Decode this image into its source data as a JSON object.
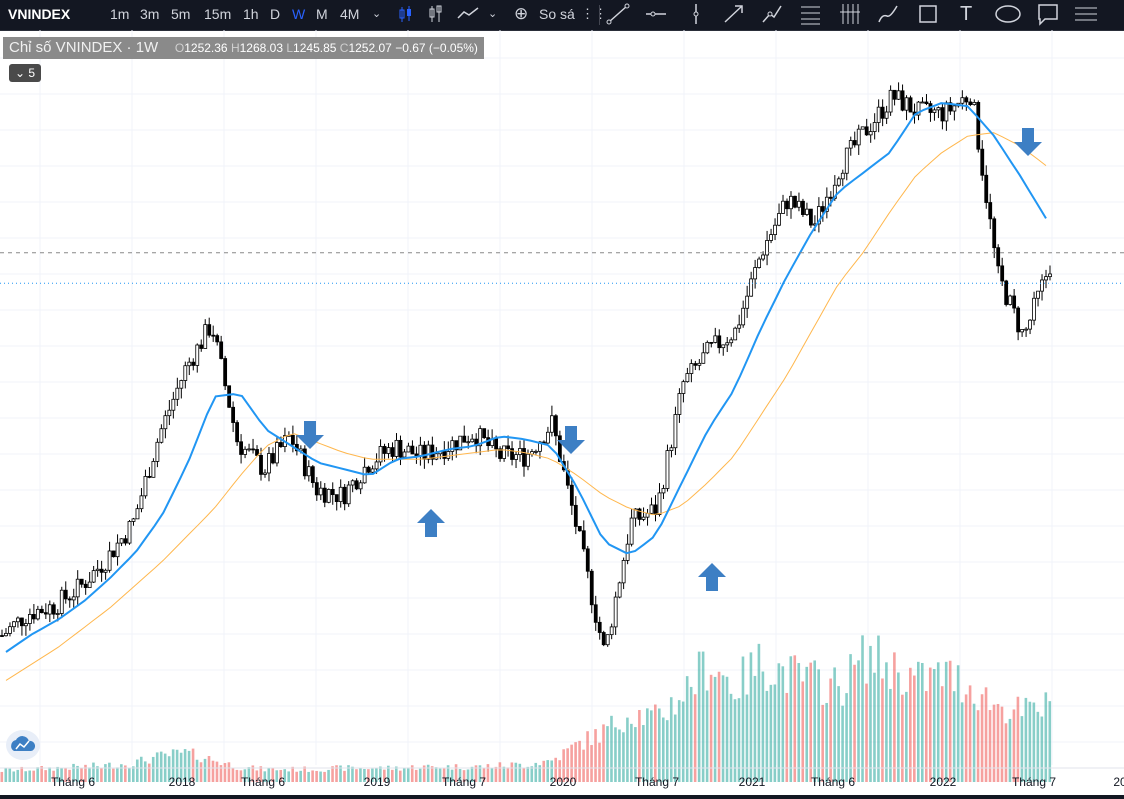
{
  "toolbar": {
    "symbol": "VNINDEX",
    "intervals": [
      "1m",
      "3m",
      "5m",
      "15m",
      "1h",
      "D",
      "W",
      "M",
      "4M"
    ],
    "active_interval": "W",
    "compare_label": "So sá",
    "icons": [
      "chevron-down-icon",
      "candles-icon",
      "bars-icon",
      "line-style-icon",
      "compare-plus-icon",
      "drag-handle-icon",
      "trend-line-icon",
      "horizontal-line-icon",
      "vertical-line-icon",
      "arrow-line-icon",
      "path-icon",
      "fib-icon",
      "gann-icon",
      "brush-icon",
      "rectangle-icon",
      "text-icon",
      "ellipse-icon",
      "callout-icon",
      "more-tools-icon"
    ]
  },
  "legend": {
    "title": "Chỉ số VNINDEX · 1W",
    "o_key": "O",
    "o_val": "1252.36",
    "h_key": "H",
    "h_val": "1268.03",
    "l_key": "L",
    "l_val": "1245.85",
    "c_key": "C",
    "c_val": "1252.07",
    "change": "−0.67 (−0.05%)",
    "collapse_count": "5"
  },
  "chart_data": {
    "type": "line",
    "title": "",
    "xlabel": "",
    "ylabel": "",
    "x_tick_labels": [
      "Tháng 6",
      "2018",
      "Tháng 6",
      "2019",
      "Tháng 7",
      "2020",
      "Tháng 7",
      "2021",
      "Tháng 6",
      "2022",
      "Tháng 7",
      "20"
    ],
    "x": [
      "2017-01",
      "2017-03",
      "2017-05",
      "2017-07",
      "2017-09",
      "2017-11",
      "2018-01",
      "2018-03",
      "2018-04",
      "2018-05",
      "2018-07",
      "2018-09",
      "2018-11",
      "2018-12",
      "2019-02",
      "2019-04",
      "2019-06",
      "2019-08",
      "2019-10",
      "2019-12",
      "2020-01",
      "2020-03",
      "2020-04",
      "2020-06",
      "2020-08",
      "2020-10",
      "2020-12",
      "2021-01",
      "2021-03",
      "2021-05",
      "2021-06",
      "2021-08",
      "2021-10",
      "2021-11",
      "2022-01",
      "2022-03",
      "2022-04",
      "2022-05",
      "2022-06",
      "2022-07",
      "2022-08"
    ],
    "series": [
      {
        "values": [
          688,
          722,
          733,
          762,
          805,
          858,
          992,
          1092,
          1160,
          980,
          940,
          990,
          910,
          900,
          950,
          975,
          960,
          975,
          995,
          960,
          960,
          1010,
          840,
          660,
          860,
          880,
          1070,
          1120,
          1150,
          1270,
          1350,
          1310,
          1400,
          1455,
          1505,
          1480,
          1480,
          1510,
          1235,
          1140,
          1250
        ]
      },
      {
        "values": [
          663,
          690,
          712,
          740,
          775,
          815,
          870,
          950,
          1050,
          1055,
          1000,
          975,
          950,
          940,
          930,
          955,
          960,
          970,
          975,
          990,
          985,
          975,
          910,
          830,
          810,
          840,
          920,
          1000,
          1060,
          1150,
          1230,
          1300,
          1360,
          1390,
          1420,
          1480,
          1495,
          1490,
          1445,
          1385,
          1320
        ]
      },
      {
        "values": [
          620,
          645,
          670,
          700,
          730,
          765,
          800,
          840,
          880,
          930,
          975,
          995,
          980,
          965,
          955,
          955,
          955,
          960,
          965,
          970,
          965,
          955,
          930,
          900,
          880,
          870,
          885,
          920,
          960,
          1020,
          1080,
          1150,
          1220,
          1270,
          1330,
          1385,
          1420,
          1445,
          1450,
          1430,
          1400
        ]
      }
    ],
    "volume_heights": [
      0.09,
      0.1,
      0.11,
      0.12,
      0.13,
      0.15,
      0.2,
      0.23,
      0.18,
      0.12,
      0.1,
      0.1,
      0.1,
      0.11,
      0.11,
      0.11,
      0.12,
      0.12,
      0.12,
      0.13,
      0.14,
      0.17,
      0.3,
      0.4,
      0.55,
      0.5,
      0.7,
      0.95,
      0.75,
      0.95,
      0.85,
      0.8,
      0.75,
      1.0,
      0.9,
      0.8,
      0.85,
      0.75,
      0.6,
      0.55,
      0.6
    ],
    "reference_price": 1268,
    "last_price": 1252,
    "ylim": [
      560,
      1560
    ],
    "grid": true,
    "colors": {
      "up": "#26a69a",
      "down": "#ef5350",
      "up_candle": "#ffffff",
      "down_candle": "#000000",
      "ma_fast": "#2196f3",
      "ma_slow": "#ffb74d",
      "annotation": "#3d7fc4"
    }
  }
}
